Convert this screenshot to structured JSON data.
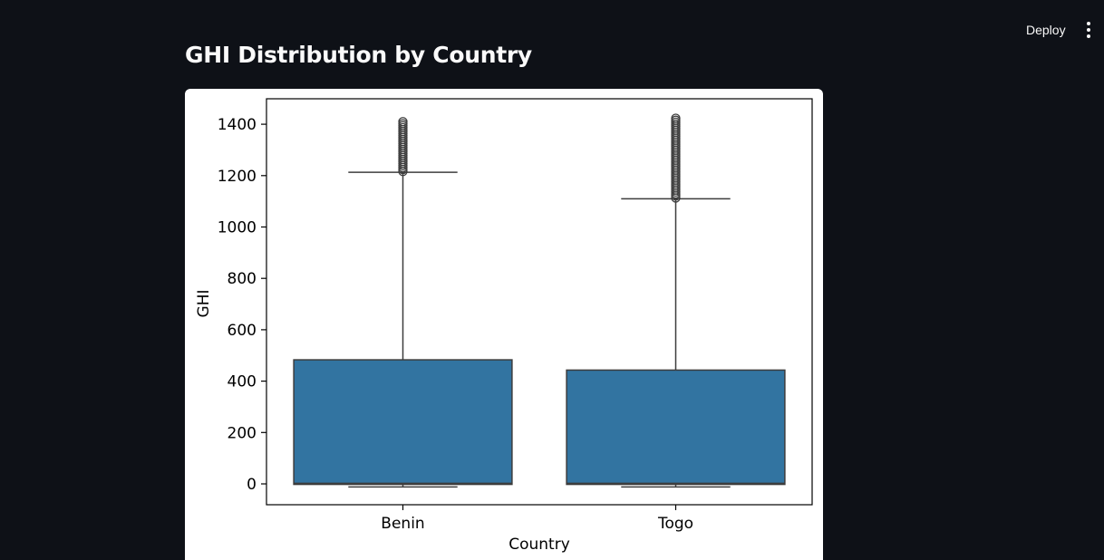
{
  "toolbar": {
    "deploy_label": "Deploy",
    "menu_icon": "vertical-ellipsis-icon"
  },
  "page": {
    "title": "GHI Distribution by Country"
  },
  "chart_data": {
    "type": "box",
    "xlabel": "Country",
    "ylabel": "GHI",
    "ylim": [
      -80,
      1500
    ],
    "yticks": [
      0,
      200,
      400,
      600,
      800,
      1000,
      1200,
      1400
    ],
    "categories": [
      "Benin",
      "Togo"
    ],
    "box_color": "#3274a1",
    "boxes": [
      {
        "category": "Benin",
        "whisker_low": -12,
        "q1": -2,
        "median": 2,
        "q3": 483,
        "whisker_high": 1213,
        "outlier_min": 1213,
        "outlier_max": 1413
      },
      {
        "category": "Togo",
        "whisker_low": -12,
        "q1": -2,
        "median": 2,
        "q3": 443,
        "whisker_high": 1110,
        "outlier_min": 1110,
        "outlier_max": 1424
      }
    ],
    "grid": false
  }
}
